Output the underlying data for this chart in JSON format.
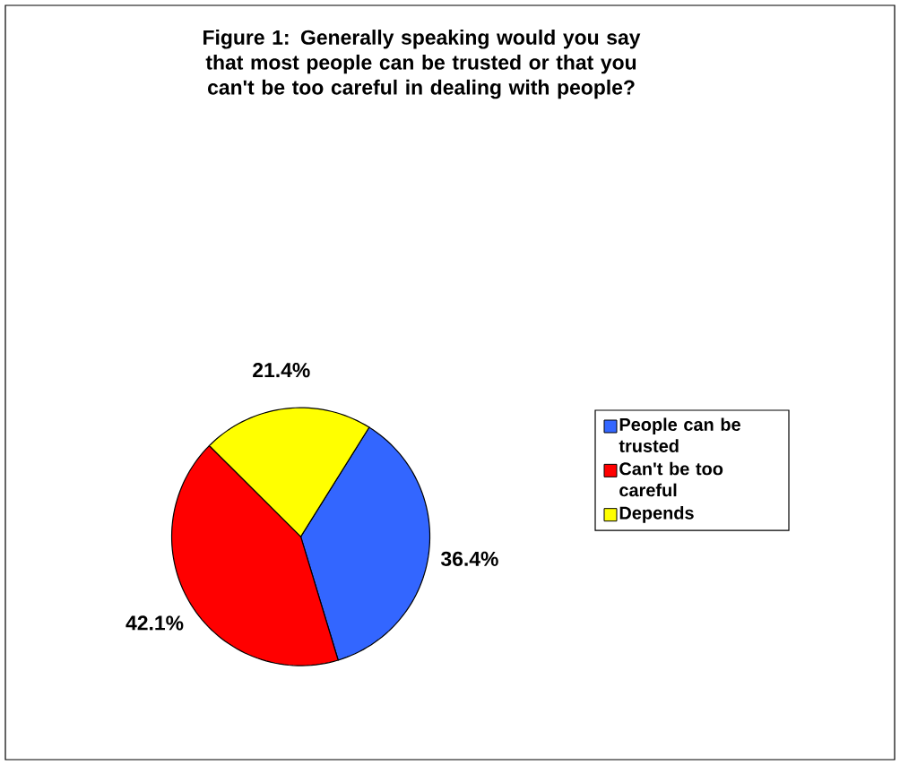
{
  "chart_data": {
    "type": "pie",
    "title": "Figure 1: Generally speaking would you say that most people can be trusted or that you can't be too careful in dealing with people?",
    "categories": [
      "People can be trusted",
      "Can't be too careful",
      "Depends"
    ],
    "values": [
      36.4,
      42.1,
      21.4
    ],
    "value_labels": [
      "36.4%",
      "42.1%",
      "21.4%"
    ],
    "colors": [
      "#3366ff",
      "#ff0000",
      "#ffff00"
    ],
    "legend": "right"
  }
}
